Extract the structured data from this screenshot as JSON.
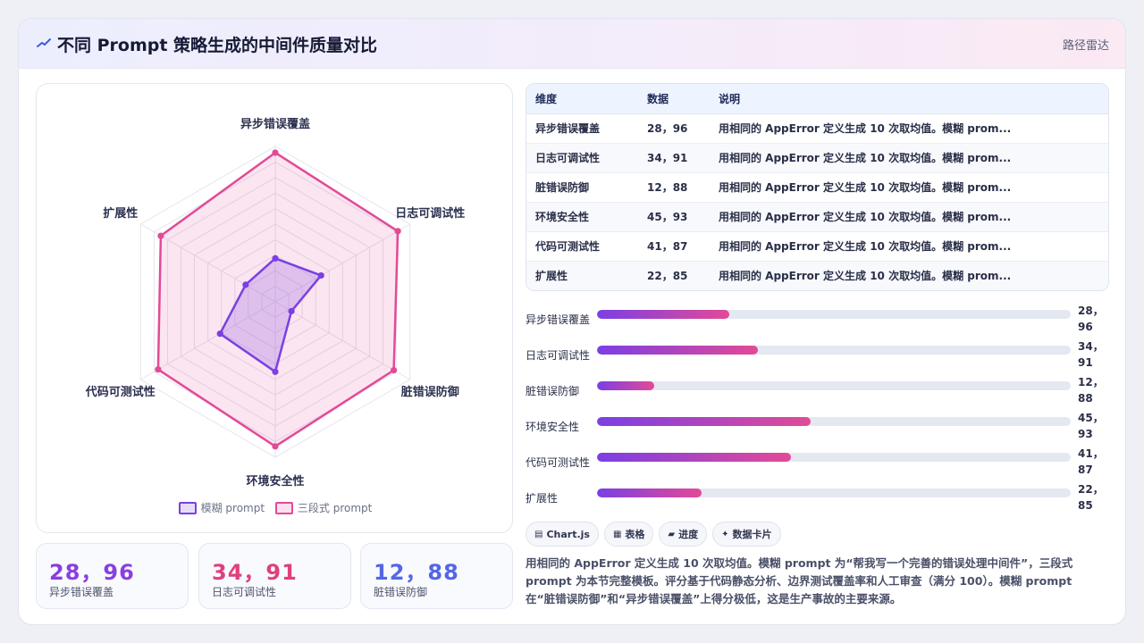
{
  "header": {
    "title": "不同 Prompt 策略生成的中间件质量对比",
    "tag": "路径雷达",
    "logo_icon": "spark-line-icon"
  },
  "chart_data": {
    "type": "radar",
    "axes": [
      "异步错误覆盖",
      "日志可调试性",
      "脏错误防御",
      "环境安全性",
      "代码可测试性",
      "扩展性"
    ],
    "range": [
      0,
      100
    ],
    "grid_levels": 10,
    "series": [
      {
        "name": "模糊 prompt",
        "values": [
          28,
          34,
          12,
          45,
          41,
          22
        ],
        "color": "#7b3fe4"
      },
      {
        "name": "三段式 prompt",
        "values": [
          96,
          91,
          88,
          93,
          87,
          85
        ],
        "color": "#e24a97"
      }
    ]
  },
  "legend": {
    "a": "模糊 prompt",
    "b": "三段式 prompt"
  },
  "stats": [
    {
      "value": "28，96",
      "label": "异步错误覆盖",
      "color": "#8a3fe0"
    },
    {
      "value": "34，91",
      "label": "日志可调试性",
      "color": "#e0407f"
    },
    {
      "value": "12，88",
      "label": "脏错误防御",
      "color": "#5566e6"
    }
  ],
  "table": {
    "headers": [
      "维度",
      "数据",
      "说明"
    ],
    "rows": [
      [
        "异步错误覆盖",
        "28，96",
        "用相同的 AppError 定义生成 10 次取均值。模糊 prom..."
      ],
      [
        "日志可调试性",
        "34，91",
        "用相同的 AppError 定义生成 10 次取均值。模糊 prom..."
      ],
      [
        "脏错误防御",
        "12，88",
        "用相同的 AppError 定义生成 10 次取均值。模糊 prom..."
      ],
      [
        "环境安全性",
        "45，93",
        "用相同的 AppError 定义生成 10 次取均值。模糊 prom..."
      ],
      [
        "代码可测试性",
        "41，87",
        "用相同的 AppError 定义生成 10 次取均值。模糊 prom..."
      ],
      [
        "扩展性",
        "22，85",
        "用相同的 AppError 定义生成 10 次取均值。模糊 prom..."
      ]
    ]
  },
  "bars": [
    {
      "label": "异步错误覆盖",
      "num1": "28，",
      "num2": "96",
      "progress": 28
    },
    {
      "label": "日志可调试性",
      "num1": "34，",
      "num2": "91",
      "progress": 34
    },
    {
      "label": "脏错误防御",
      "num1": "12，",
      "num2": "88",
      "progress": 12
    },
    {
      "label": "环境安全性",
      "num1": "45，",
      "num2": "93",
      "progress": 45
    },
    {
      "label": "代码可测试性",
      "num1": "41，",
      "num2": "87",
      "progress": 41
    },
    {
      "label": "扩展性",
      "num1": "22，",
      "num2": "85",
      "progress": 22
    }
  ],
  "chips": [
    {
      "icon": "▤",
      "icon_name": "chart-icon",
      "label": "Chart.js"
    },
    {
      "icon": "▦",
      "icon_name": "table-icon",
      "label": "表格"
    },
    {
      "icon": "▰",
      "icon_name": "progress-icon",
      "label": "进度"
    },
    {
      "icon": "✦",
      "icon_name": "card-icon",
      "label": "数据卡片"
    }
  ],
  "description": "用相同的 AppError 定义生成 10 次取均值。模糊 prompt 为“帮我写一个完善的错误处理中间件”，三段式 prompt 为本节完整模板。评分基于代码静态分析、边界测试覆盖率和人工审查（满分 100）。模糊 prompt 在“脏错误防御”和“异步错误覆盖”上得分极低，这是生产事故的主要来源。"
}
